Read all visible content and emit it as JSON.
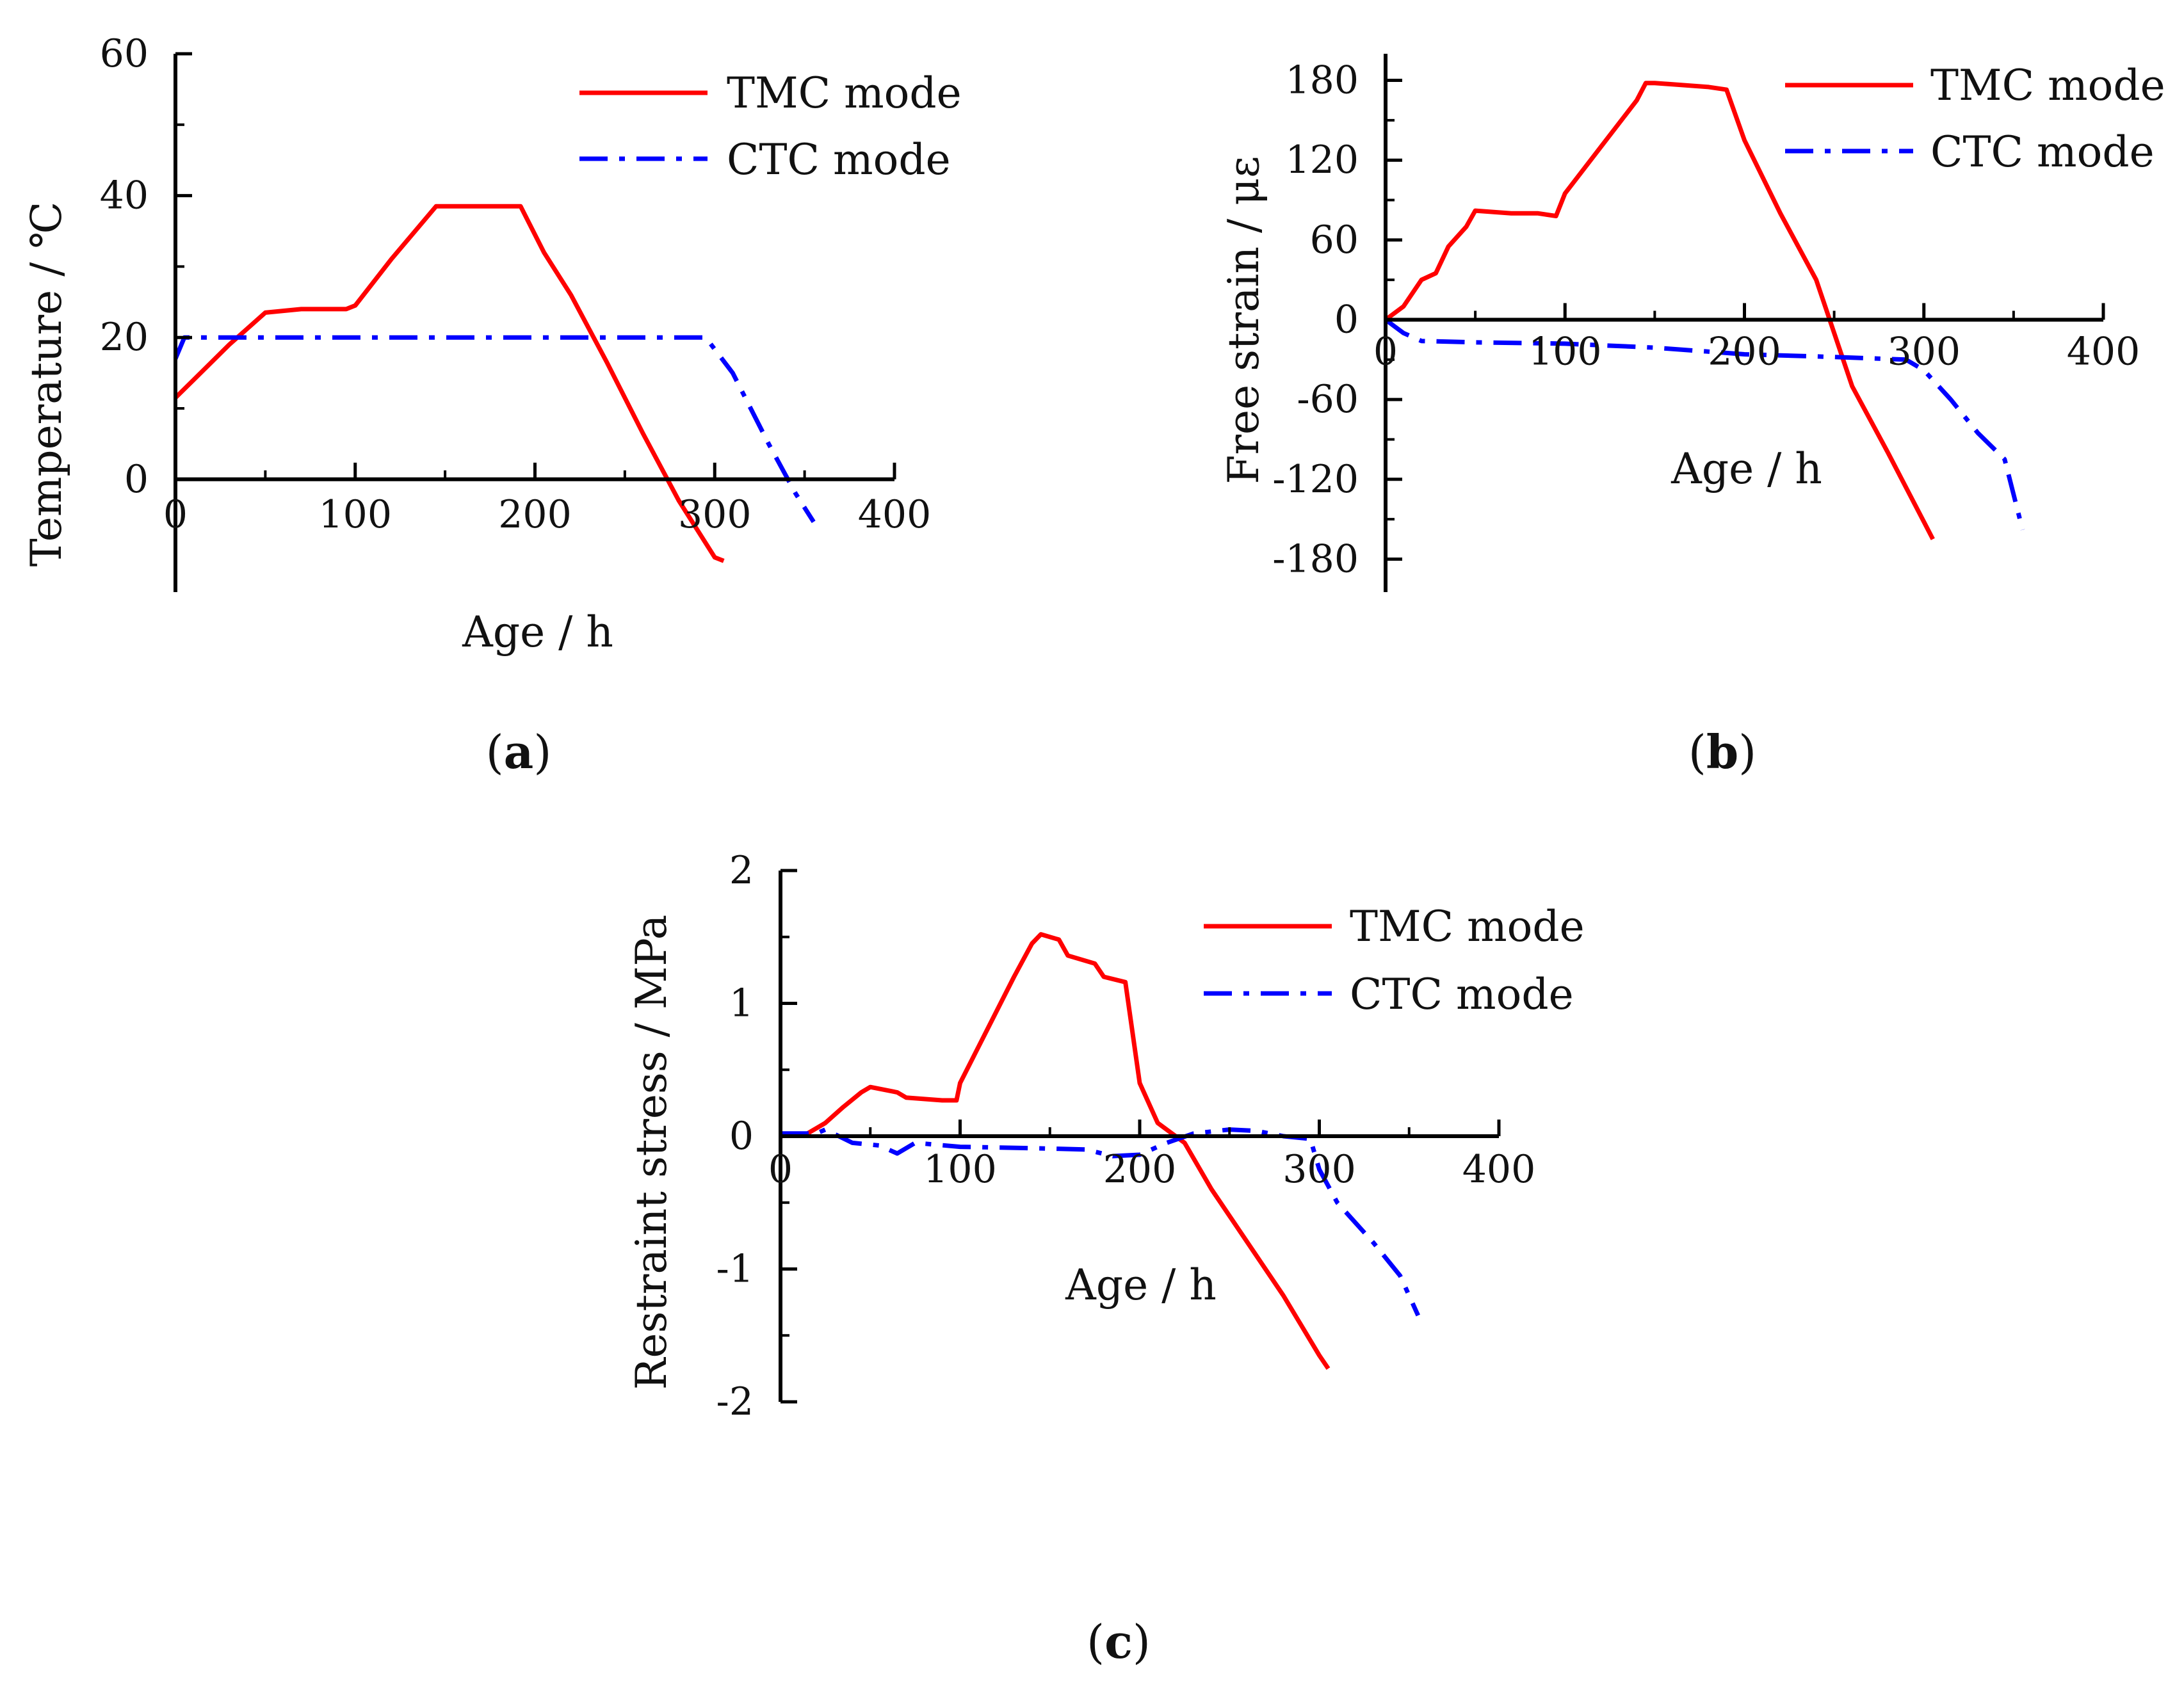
{
  "colors": {
    "tmc": "#ff0000",
    "ctc": "#0000ff",
    "axis": "#000000"
  },
  "legend": {
    "tmc_label": "TMC mode",
    "ctc_label": "CTC mode"
  },
  "chart_data": [
    {
      "type": "line",
      "panel_label": "a",
      "xlabel": "Age / h",
      "ylabel": "Temperature / ℃",
      "xlim": [
        0,
        400
      ],
      "ylim": [
        -15,
        60
      ],
      "xticks": [
        0,
        100,
        200,
        300,
        400
      ],
      "yticks": [
        0,
        20,
        40,
        60
      ],
      "series": [
        {
          "name": "TMC mode",
          "x": [
            0,
            10,
            30,
            50,
            70,
            95,
            100,
            120,
            145,
            150,
            175,
            192,
            205,
            220,
            240,
            260,
            280,
            300,
            305
          ],
          "y": [
            11.5,
            14,
            19,
            23.5,
            24,
            24,
            24.5,
            31,
            38.5,
            38.5,
            38.5,
            38.5,
            32,
            26,
            16.5,
            6.5,
            -3,
            -11,
            -11.5
          ]
        },
        {
          "name": "CTC mode",
          "x": [
            0,
            5,
            10,
            50,
            100,
            150,
            200,
            250,
            280,
            295,
            310,
            330,
            345,
            355
          ],
          "y": [
            17,
            20,
            20,
            20,
            20,
            20,
            20,
            20,
            20,
            20,
            15,
            5,
            -2,
            -6
          ]
        }
      ]
    },
    {
      "type": "line",
      "panel_label": "b",
      "xlabel": "Age / h",
      "ylabel": "Free strain / με",
      "xlim": [
        0,
        400
      ],
      "ylim": [
        -200,
        200
      ],
      "xticks": [
        0,
        100,
        200,
        300,
        400
      ],
      "yticks": [
        -180,
        -120,
        -60,
        0,
        60,
        120,
        180
      ],
      "series": [
        {
          "name": "TMC mode",
          "x": [
            0,
            10,
            20,
            28,
            35,
            45,
            50,
            70,
            85,
            95,
            100,
            120,
            140,
            145,
            150,
            160,
            180,
            190,
            200,
            220,
            240,
            260,
            280,
            300,
            305
          ],
          "y": [
            0,
            10,
            30,
            35,
            55,
            70,
            82,
            80,
            80,
            78,
            95,
            130,
            165,
            178,
            178,
            177,
            175,
            173,
            135,
            80,
            30,
            -50,
            -100,
            -152,
            -165
          ]
        },
        {
          "name": "CTC mode",
          "x": [
            0,
            5,
            10,
            20,
            50,
            100,
            150,
            190,
            200,
            250,
            290,
            300,
            315,
            330,
            345,
            355
          ],
          "y": [
            0,
            -5,
            -10,
            -16,
            -17,
            -18,
            -21,
            -25,
            -26,
            -28,
            -30,
            -38,
            -60,
            -85,
            -105,
            -158
          ]
        }
      ]
    },
    {
      "type": "line",
      "panel_label": "c",
      "xlabel": "Age / h",
      "ylabel": "Restraint stress / MPa",
      "xlim": [
        0,
        400
      ],
      "ylim": [
        -2,
        2
      ],
      "xticks": [
        0,
        100,
        200,
        300,
        400
      ],
      "yticks": [
        -2,
        -1,
        0,
        1,
        2
      ],
      "series": [
        {
          "name": "TMC mode",
          "x": [
            0,
            15,
            25,
            35,
            45,
            50,
            65,
            70,
            90,
            98,
            100,
            115,
            130,
            140,
            145,
            155,
            160,
            175,
            180,
            192,
            200,
            210,
            220,
            225,
            240,
            260,
            280,
            300,
            305
          ],
          "y": [
            0,
            0.02,
            0.1,
            0.22,
            0.33,
            0.37,
            0.33,
            0.29,
            0.27,
            0.27,
            0.4,
            0.8,
            1.2,
            1.45,
            1.52,
            1.48,
            1.36,
            1.3,
            1.2,
            1.16,
            0.4,
            0.1,
            0,
            -0.05,
            -0.4,
            -0.8,
            -1.2,
            -1.65,
            -1.75
          ]
        },
        {
          "name": "CTC mode",
          "x": [
            0,
            20,
            25,
            40,
            55,
            65,
            75,
            100,
            140,
            170,
            185,
            200,
            215,
            230,
            250,
            265,
            280,
            295,
            300,
            310,
            330,
            345,
            355
          ],
          "y": [
            0.02,
            0.02,
            0.05,
            -0.05,
            -0.07,
            -0.13,
            -0.05,
            -0.08,
            -0.09,
            -0.1,
            -0.15,
            -0.14,
            -0.05,
            0.02,
            0.05,
            0.04,
            0,
            -0.02,
            -0.25,
            -0.5,
            -0.8,
            -1.05,
            -1.35
          ]
        }
      ]
    }
  ]
}
